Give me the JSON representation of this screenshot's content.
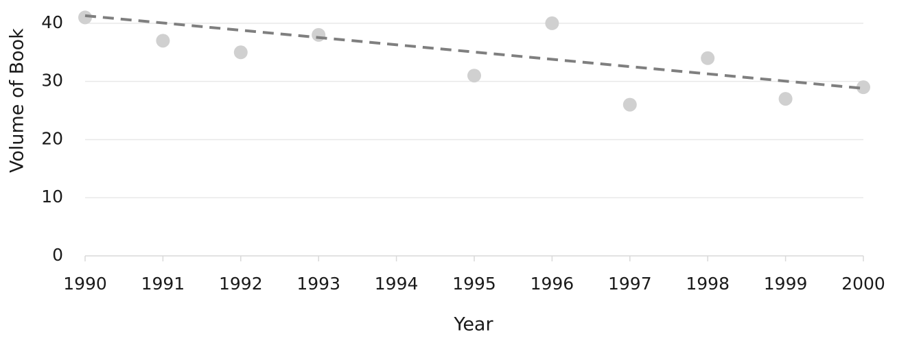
{
  "chart_data": {
    "type": "scatter",
    "x_label": "Year",
    "y_label": "Volume of Book",
    "series": [
      {
        "name": "Volume",
        "color": "#d0d0d0",
        "x": [
          1990,
          1991,
          1992,
          1993,
          1995,
          1996,
          1997,
          1998,
          1999,
          2000
        ],
        "values": [
          41,
          37,
          35,
          38,
          31,
          40,
          26,
          34,
          27,
          29
        ]
      }
    ],
    "trendline": {
      "x": [
        1990,
        2000
      ],
      "values": [
        41.3,
        28.8
      ],
      "color": "#7f7f7f"
    },
    "xlim": [
      1990,
      2000
    ],
    "xticks": [
      1990,
      1991,
      1992,
      1993,
      1994,
      1995,
      1996,
      1997,
      1998,
      1999,
      2000
    ],
    "ylim": [
      0,
      44
    ],
    "yticks": [
      0,
      10,
      20,
      30,
      40
    ],
    "grid": true
  }
}
